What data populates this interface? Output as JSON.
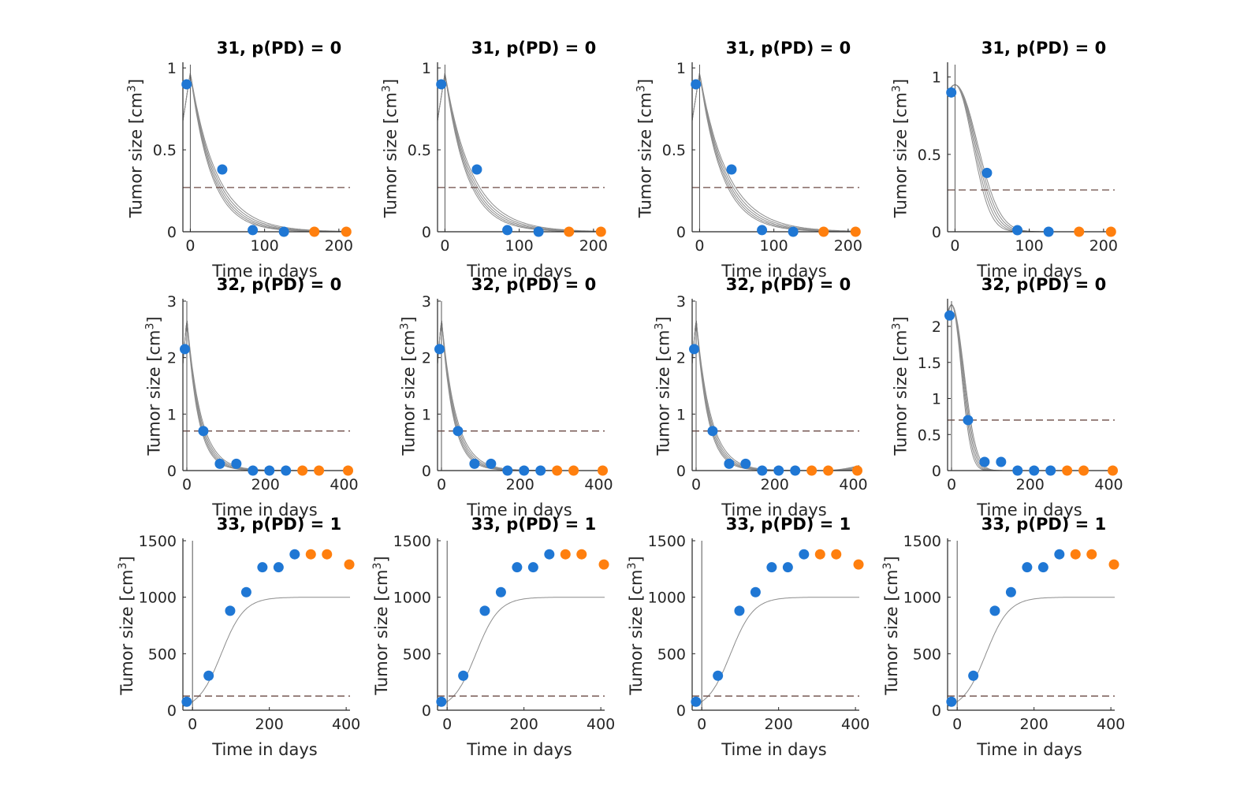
{
  "colors": {
    "observed": "#1f77d4",
    "heldout": "#ff7f0e",
    "fit": "#8c8c8c",
    "threshold": "#6b4a45",
    "axis": "#262626"
  },
  "labels": {
    "xlabel": "Time in days",
    "ylabel": "Tumor size [cm",
    "ylabel_sup": "3",
    "ylabel_end": "]"
  },
  "chart_data": [
    {
      "type": "scatter",
      "title": "31, p(PD) = 0",
      "xlabel": "Time in days",
      "ylabel": "Tumor size [cm3]",
      "xlim": [
        -10,
        215
      ],
      "ylim": [
        0,
        1.02
      ],
      "xticks": [
        0,
        100,
        200
      ],
      "yticks": [
        0,
        0.5,
        1
      ],
      "threshold": 0.27,
      "observed": {
        "x": [
          -5,
          43,
          84,
          126
        ],
        "y": [
          0.9,
          0.38,
          0.01,
          0.0
        ]
      },
      "heldout": {
        "x": [
          167,
          210
        ],
        "y": [
          0.0,
          0.0
        ]
      },
      "fit": {
        "model": "decay",
        "y0": 0.97,
        "k": 0.032
      }
    },
    {
      "type": "scatter",
      "title": "31, p(PD) = 0",
      "xlabel": "Time in days",
      "ylabel": "Tumor size [cm3]",
      "xlim": [
        -10,
        215
      ],
      "ylim": [
        0,
        1.02
      ],
      "xticks": [
        0,
        100,
        200
      ],
      "yticks": [
        0,
        0.5,
        1
      ],
      "threshold": 0.27,
      "observed": {
        "x": [
          -5,
          43,
          84,
          126
        ],
        "y": [
          0.9,
          0.38,
          0.01,
          0.0
        ]
      },
      "heldout": {
        "x": [
          167,
          210
        ],
        "y": [
          0.0,
          0.0
        ]
      },
      "fit": {
        "model": "decay",
        "y0": 0.97,
        "k": 0.031
      }
    },
    {
      "type": "scatter",
      "title": "31, p(PD) = 0",
      "xlabel": "Time in days",
      "ylabel": "Tumor size [cm3]",
      "xlim": [
        -10,
        215
      ],
      "ylim": [
        0,
        1.02
      ],
      "xticks": [
        0,
        100,
        200
      ],
      "yticks": [
        0,
        0.5,
        1
      ],
      "threshold": 0.27,
      "observed": {
        "x": [
          -5,
          43,
          84,
          126
        ],
        "y": [
          0.9,
          0.38,
          0.01,
          0.0
        ]
      },
      "heldout": {
        "x": [
          167,
          210
        ],
        "y": [
          0.0,
          0.0
        ]
      },
      "fit": {
        "model": "decay",
        "y0": 0.97,
        "k": 0.03
      }
    },
    {
      "type": "scatter",
      "title": "31, p(PD) = 0",
      "xlabel": "Time in days",
      "ylabel": "Tumor size [cm3]",
      "xlim": [
        -10,
        215
      ],
      "ylim": [
        0,
        1.08
      ],
      "xticks": [
        0,
        100,
        200
      ],
      "yticks": [
        0,
        0.5,
        1
      ],
      "threshold": 0.27,
      "observed": {
        "x": [
          -5,
          43,
          84,
          126
        ],
        "y": [
          0.9,
          0.38,
          0.01,
          0.0
        ]
      },
      "heldout": {
        "x": [
          167,
          210
        ],
        "y": [
          0.0,
          0.0
        ]
      },
      "fit": {
        "model": "gauss",
        "y0": 0.95,
        "c": 40
      }
    },
    {
      "type": "scatter",
      "title": "32, p(PD) = 0",
      "xlabel": "Time in days",
      "ylabel": "Tumor size [cm3]",
      "xlim": [
        -10,
        415
      ],
      "ylim": [
        0,
        3
      ],
      "xticks": [
        0,
        200,
        400
      ],
      "yticks": [
        0,
        1,
        2,
        3
      ],
      "threshold": 0.7,
      "observed": {
        "x": [
          -5,
          42,
          84,
          126,
          168,
          210,
          252
        ],
        "y": [
          2.15,
          0.7,
          0.12,
          0.12,
          0.0,
          0.0,
          0.0
        ]
      },
      "heldout": {
        "x": [
          294,
          336,
          410
        ],
        "y": [
          0.0,
          0.0,
          0.0
        ]
      },
      "fit": {
        "model": "decay",
        "y0": 2.7,
        "k": 0.032
      }
    },
    {
      "type": "scatter",
      "title": "32, p(PD) = 0",
      "xlabel": "Time in days",
      "ylabel": "Tumor size [cm3]",
      "xlim": [
        -10,
        415
      ],
      "ylim": [
        0,
        3
      ],
      "xticks": [
        0,
        200,
        400
      ],
      "yticks": [
        0,
        1,
        2,
        3
      ],
      "threshold": 0.7,
      "observed": {
        "x": [
          -5,
          42,
          84,
          126,
          168,
          210,
          252
        ],
        "y": [
          2.15,
          0.7,
          0.12,
          0.12,
          0.0,
          0.0,
          0.0
        ]
      },
      "heldout": {
        "x": [
          294,
          336,
          410
        ],
        "y": [
          0.0,
          0.0,
          0.0
        ]
      },
      "fit": {
        "model": "decay",
        "y0": 2.7,
        "k": 0.031
      }
    },
    {
      "type": "scatter",
      "title": "32, p(PD) = 0",
      "xlabel": "Time in days",
      "ylabel": "Tumor size [cm3]",
      "xlim": [
        -10,
        415
      ],
      "ylim": [
        0,
        3
      ],
      "xticks": [
        0,
        200,
        400
      ],
      "yticks": [
        0,
        1,
        2,
        3
      ],
      "threshold": 0.7,
      "observed": {
        "x": [
          -5,
          42,
          84,
          126,
          168,
          210,
          252
        ],
        "y": [
          2.15,
          0.7,
          0.12,
          0.12,
          0.0,
          0.0,
          0.0
        ]
      },
      "heldout": {
        "x": [
          294,
          336,
          410
        ],
        "y": [
          0.0,
          0.0,
          0.0
        ]
      },
      "fit": {
        "model": "decayregrow",
        "y0": 2.7,
        "k": 0.031
      }
    },
    {
      "type": "scatter",
      "title": "32, p(PD) = 0",
      "xlabel": "Time in days",
      "ylabel": "Tumor size [cm3]",
      "xlim": [
        -10,
        415
      ],
      "ylim": [
        0,
        2.35
      ],
      "xticks": [
        0,
        200,
        400
      ],
      "yticks": [
        0,
        0.5,
        1,
        1.5,
        2
      ],
      "threshold": 0.7,
      "observed": {
        "x": [
          -5,
          42,
          84,
          126,
          168,
          210,
          252
        ],
        "y": [
          2.15,
          0.7,
          0.12,
          0.12,
          0.0,
          0.0,
          0.0
        ]
      },
      "heldout": {
        "x": [
          294,
          336,
          410
        ],
        "y": [
          0.0,
          0.0,
          0.0
        ]
      },
      "fit": {
        "model": "gauss",
        "y0": 2.3,
        "c": 42
      }
    },
    {
      "type": "scatter",
      "title": "33, p(PD) = 1",
      "xlabel": "Time in days",
      "ylabel": "Tumor size [cm3]",
      "xlim": [
        -25,
        410
      ],
      "ylim": [
        0,
        1500
      ],
      "xticks": [
        0,
        200,
        400
      ],
      "yticks": [
        0,
        500,
        1000,
        1500
      ],
      "threshold": 125,
      "observed": {
        "x": [
          -15,
          42,
          98,
          140,
          182,
          224,
          266
        ],
        "y": [
          75,
          305,
          880,
          1045,
          1265,
          1265,
          1380
        ]
      },
      "heldout": {
        "x": [
          308,
          350,
          408
        ],
        "y": [
          1380,
          1380,
          1290
        ]
      },
      "fit": {
        "model": "logistic",
        "K": 1000,
        "t0": 75,
        "w": 30
      }
    },
    {
      "type": "scatter",
      "title": "33, p(PD) = 1",
      "xlabel": "Time in days",
      "ylabel": "Tumor size [cm3]",
      "xlim": [
        -25,
        410
      ],
      "ylim": [
        0,
        1500
      ],
      "xticks": [
        0,
        200,
        400
      ],
      "yticks": [
        0,
        500,
        1000,
        1500
      ],
      "threshold": 125,
      "observed": {
        "x": [
          -15,
          42,
          98,
          140,
          182,
          224,
          266
        ],
        "y": [
          75,
          305,
          880,
          1045,
          1265,
          1265,
          1380
        ]
      },
      "heldout": {
        "x": [
          308,
          350,
          408
        ],
        "y": [
          1380,
          1380,
          1290
        ]
      },
      "fit": {
        "model": "logistic",
        "K": 1000,
        "t0": 75,
        "w": 30
      }
    },
    {
      "type": "scatter",
      "title": "33, p(PD) = 1",
      "xlabel": "Time in days",
      "ylabel": "Tumor size [cm3]",
      "xlim": [
        -25,
        410
      ],
      "ylim": [
        0,
        1500
      ],
      "xticks": [
        0,
        200,
        400
      ],
      "yticks": [
        0,
        500,
        1000,
        1500
      ],
      "threshold": 125,
      "observed": {
        "x": [
          -15,
          42,
          98,
          140,
          182,
          224,
          266
        ],
        "y": [
          75,
          305,
          880,
          1045,
          1265,
          1265,
          1380
        ]
      },
      "heldout": {
        "x": [
          308,
          350,
          408
        ],
        "y": [
          1380,
          1380,
          1290
        ]
      },
      "fit": {
        "model": "logistic",
        "K": 1000,
        "t0": 75,
        "w": 30
      }
    },
    {
      "type": "scatter",
      "title": "33, p(PD) = 1",
      "xlabel": "Time in days",
      "ylabel": "Tumor size [cm3]",
      "xlim": [
        -25,
        410
      ],
      "ylim": [
        0,
        1500
      ],
      "xticks": [
        0,
        200,
        400
      ],
      "yticks": [
        0,
        500,
        1000,
        1500
      ],
      "threshold": 125,
      "observed": {
        "x": [
          -15,
          42,
          98,
          140,
          182,
          224,
          266
        ],
        "y": [
          75,
          305,
          880,
          1045,
          1265,
          1265,
          1380
        ]
      },
      "heldout": {
        "x": [
          308,
          350,
          408
        ],
        "y": [
          1380,
          1380,
          1290
        ]
      },
      "fit": {
        "model": "logistic",
        "K": 1000,
        "t0": 75,
        "w": 30
      }
    }
  ]
}
